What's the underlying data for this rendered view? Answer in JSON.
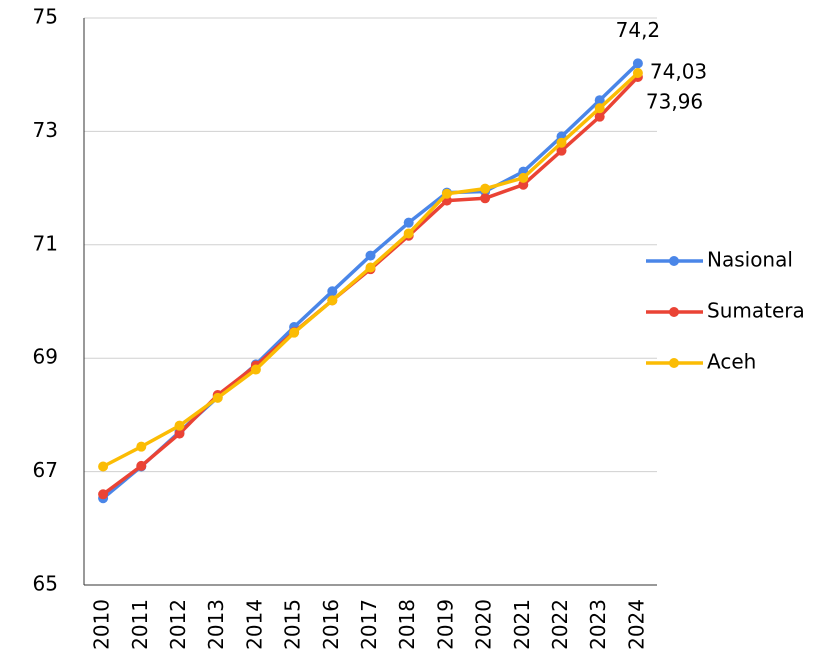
{
  "chart_data": {
    "type": "line",
    "categories": [
      "2010",
      "2011",
      "2012",
      "2013",
      "2014",
      "2015",
      "2016",
      "2017",
      "2018",
      "2019",
      "2020",
      "2021",
      "2022",
      "2023",
      "2024"
    ],
    "series": [
      {
        "name": "Nasional",
        "color": "#4a86e8",
        "values": [
          66.53,
          67.09,
          67.7,
          68.31,
          68.89,
          69.55,
          70.18,
          70.81,
          71.39,
          71.92,
          71.94,
          72.29,
          72.91,
          73.55,
          74.2
        ],
        "value_labels": [
          null,
          null,
          null,
          null,
          null,
          null,
          null,
          null,
          null,
          null,
          null,
          null,
          null,
          null,
          "74,2"
        ]
      },
      {
        "name": "Sumatera",
        "color": "#ea4335",
        "values": [
          66.6,
          67.1,
          67.67,
          68.35,
          68.87,
          69.46,
          70.02,
          70.57,
          71.16,
          71.78,
          71.82,
          72.06,
          72.66,
          73.26,
          73.96
        ],
        "value_labels": [
          null,
          null,
          null,
          null,
          null,
          null,
          null,
          null,
          null,
          null,
          null,
          null,
          null,
          null,
          "73,96"
        ]
      },
      {
        "name": "Aceh",
        "color": "#fbbc04",
        "values": [
          67.09,
          67.44,
          67.81,
          68.3,
          68.8,
          69.45,
          70.02,
          70.6,
          71.2,
          71.9,
          71.99,
          72.18,
          72.8,
          73.41,
          74.03
        ],
        "value_labels": [
          null,
          null,
          null,
          null,
          null,
          null,
          null,
          null,
          null,
          null,
          null,
          null,
          null,
          null,
          "74,03"
        ]
      }
    ],
    "ylim": [
      65,
      75
    ],
    "yticks": [
      65,
      67,
      69,
      71,
      73,
      75
    ],
    "grid": true,
    "legend": "right"
  }
}
